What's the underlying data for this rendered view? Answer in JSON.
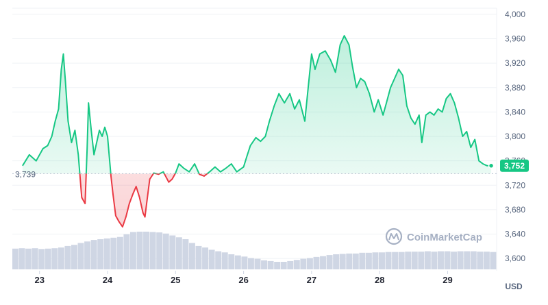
{
  "chart_data": {
    "type": "area",
    "x_ticks": [
      "23",
      "24",
      "25",
      "26",
      "27",
      "28",
      "29"
    ],
    "y_ticks": [
      "3,600",
      "3,640",
      "3,680",
      "3,720",
      "3,760",
      "3,800",
      "3,840",
      "3,880",
      "3,920",
      "3,960",
      "4,000"
    ],
    "ylim": [
      3580,
      4010
    ],
    "baseline": 3739,
    "baseline_label": "3,739",
    "current_value": 3752,
    "current_label": "3,752",
    "unit": "USD",
    "grid": true,
    "colors": {
      "up": "#16c784",
      "down": "#ea3943",
      "up_fill": "#16c784",
      "down_fill": "#ea3943",
      "volume": "#cfd6e4",
      "grid": "#eff2f5"
    },
    "watermark": "CoinMarketCap",
    "series": [
      {
        "values": [
          [
            22.75,
            3752
          ],
          [
            22.85,
            3770
          ],
          [
            22.95,
            3760
          ],
          [
            23.05,
            3780
          ],
          [
            23.12,
            3785
          ],
          [
            23.18,
            3800
          ],
          [
            23.23,
            3825
          ],
          [
            23.28,
            3845
          ],
          [
            23.32,
            3910
          ],
          [
            23.35,
            3935
          ],
          [
            23.38,
            3890
          ],
          [
            23.42,
            3825
          ],
          [
            23.47,
            3790
          ],
          [
            23.52,
            3810
          ],
          [
            23.57,
            3770
          ],
          [
            23.62,
            3700
          ],
          [
            23.67,
            3690
          ],
          [
            23.7,
            3780
          ],
          [
            23.72,
            3855
          ],
          [
            23.76,
            3810
          ],
          [
            23.8,
            3770
          ],
          [
            23.84,
            3790
          ],
          [
            23.88,
            3810
          ],
          [
            23.92,
            3800
          ],
          [
            23.96,
            3815
          ],
          [
            24.0,
            3800
          ],
          [
            24.05,
            3735
          ],
          [
            24.08,
            3705
          ],
          [
            24.12,
            3670
          ],
          [
            24.17,
            3660
          ],
          [
            24.22,
            3652
          ],
          [
            24.27,
            3668
          ],
          [
            24.32,
            3690
          ],
          [
            24.37,
            3705
          ],
          [
            24.42,
            3718
          ],
          [
            24.47,
            3700
          ],
          [
            24.52,
            3675
          ],
          [
            24.55,
            3668
          ],
          [
            24.58,
            3695
          ],
          [
            24.62,
            3730
          ],
          [
            24.68,
            3740
          ],
          [
            24.75,
            3738
          ],
          [
            24.82,
            3742
          ],
          [
            24.9,
            3725
          ],
          [
            24.95,
            3730
          ],
          [
            25.0,
            3740
          ],
          [
            25.05,
            3755
          ],
          [
            25.12,
            3748
          ],
          [
            25.2,
            3742
          ],
          [
            25.28,
            3755
          ],
          [
            25.35,
            3738
          ],
          [
            25.42,
            3735
          ],
          [
            25.5,
            3742
          ],
          [
            25.58,
            3750
          ],
          [
            25.66,
            3742
          ],
          [
            25.74,
            3748
          ],
          [
            25.82,
            3755
          ],
          [
            25.9,
            3742
          ],
          [
            26.0,
            3750
          ],
          [
            26.05,
            3768
          ],
          [
            26.1,
            3785
          ],
          [
            26.18,
            3798
          ],
          [
            26.25,
            3792
          ],
          [
            26.32,
            3800
          ],
          [
            26.38,
            3825
          ],
          [
            26.45,
            3850
          ],
          [
            26.52,
            3870
          ],
          [
            26.6,
            3855
          ],
          [
            26.68,
            3870
          ],
          [
            26.75,
            3845
          ],
          [
            26.82,
            3860
          ],
          [
            26.9,
            3825
          ],
          [
            26.95,
            3880
          ],
          [
            27.0,
            3935
          ],
          [
            27.05,
            3910
          ],
          [
            27.12,
            3935
          ],
          [
            27.2,
            3940
          ],
          [
            27.28,
            3925
          ],
          [
            27.35,
            3905
          ],
          [
            27.42,
            3950
          ],
          [
            27.48,
            3965
          ],
          [
            27.55,
            3950
          ],
          [
            27.6,
            3915
          ],
          [
            27.66,
            3880
          ],
          [
            27.72,
            3895
          ],
          [
            27.78,
            3890
          ],
          [
            27.85,
            3870
          ],
          [
            27.92,
            3840
          ],
          [
            27.98,
            3860
          ],
          [
            28.05,
            3835
          ],
          [
            28.1,
            3855
          ],
          [
            28.16,
            3880
          ],
          [
            28.22,
            3895
          ],
          [
            28.28,
            3910
          ],
          [
            28.34,
            3900
          ],
          [
            28.4,
            3850
          ],
          [
            28.46,
            3830
          ],
          [
            28.52,
            3820
          ],
          [
            28.58,
            3835
          ],
          [
            28.62,
            3790
          ],
          [
            28.68,
            3835
          ],
          [
            28.74,
            3840
          ],
          [
            28.8,
            3835
          ],
          [
            28.86,
            3845
          ],
          [
            28.92,
            3840
          ],
          [
            28.98,
            3862
          ],
          [
            29.04,
            3870
          ],
          [
            29.1,
            3855
          ],
          [
            29.16,
            3830
          ],
          [
            29.22,
            3800
          ],
          [
            29.28,
            3808
          ],
          [
            29.34,
            3782
          ],
          [
            29.4,
            3795
          ],
          [
            29.46,
            3760
          ],
          [
            29.52,
            3755
          ],
          [
            29.58,
            3752
          ],
          [
            29.64,
            3752
          ]
        ]
      }
    ],
    "volume": [
      0.55,
      0.56,
      0.55,
      0.56,
      0.54,
      0.55,
      0.56,
      0.58,
      0.62,
      0.65,
      0.7,
      0.74,
      0.78,
      0.8,
      0.82,
      0.84,
      0.86,
      0.93,
      0.99,
      1.0,
      1.0,
      0.99,
      0.98,
      0.95,
      0.9,
      0.85,
      0.8,
      0.7,
      0.62,
      0.58,
      0.52,
      0.48,
      0.45,
      0.4,
      0.37,
      0.34,
      0.3,
      0.28,
      0.24,
      0.22,
      0.2,
      0.2,
      0.22,
      0.25,
      0.28,
      0.3,
      0.33,
      0.35,
      0.38,
      0.4,
      0.41,
      0.42,
      0.42,
      0.44,
      0.44,
      0.45,
      0.45,
      0.46,
      0.46,
      0.46,
      0.47,
      0.47,
      0.47,
      0.48,
      0.47,
      0.48,
      0.48,
      0.47,
      0.48,
      0.48,
      0.48,
      0.47,
      0.47,
      0.46
    ]
  }
}
